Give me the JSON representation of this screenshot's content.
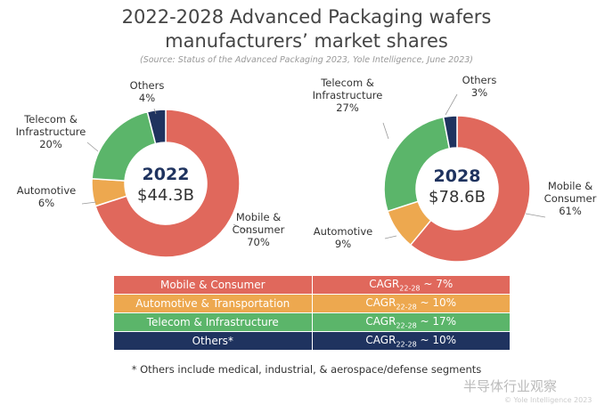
{
  "chart_data": [
    {
      "type": "pie",
      "donut": true,
      "year": "2022",
      "total": "$44.3B",
      "slices": [
        {
          "name": "Mobile & Consumer",
          "value": 70,
          "label": "Mobile &\nConsumer\n70%",
          "color": "#e0685c"
        },
        {
          "name": "Automotive",
          "value": 6,
          "label": "Automotive\n6%",
          "color": "#eda84f"
        },
        {
          "name": "Telecom & Infrastructure",
          "value": 20,
          "label": "Telecom &\nInfrastructure\n20%",
          "color": "#5bb56a"
        },
        {
          "name": "Others",
          "value": 4,
          "label": "Others\n4%",
          "color": "#1f335f"
        }
      ]
    },
    {
      "type": "pie",
      "donut": true,
      "year": "2028",
      "total": "$78.6B",
      "slices": [
        {
          "name": "Mobile & Consumer",
          "value": 61,
          "label": "Mobile &\nConsumer\n61%",
          "color": "#e0685c"
        },
        {
          "name": "Automotive",
          "value": 9,
          "label": "Automotive\n9%",
          "color": "#eda84f"
        },
        {
          "name": "Telecom & Infrastructure",
          "value": 27,
          "label": "Telecom &\nInfrastructure\n27%",
          "color": "#5bb56a"
        },
        {
          "name": "Others",
          "value": 3,
          "label": "Others\n3%",
          "color": "#1f335f"
        }
      ]
    }
  ],
  "title_line1": "2022-2028 Advanced Packaging wafers",
  "title_line2": "manufacturers’ market shares",
  "source": "(Source: Status of the Advanced Packaging 2023, Yole Intelligence, June 2023)",
  "cagr_table": [
    {
      "segment": "Mobile & Consumer",
      "cagr": "~ 7%",
      "color": "#e0685c"
    },
    {
      "segment": "Automotive & Transportation",
      "cagr": "~ 10%",
      "color": "#eda84f"
    },
    {
      "segment": "Telecom & Infrastructure",
      "cagr": "~ 17%",
      "color": "#5bb56a"
    },
    {
      "segment": "Others*",
      "cagr": "~ 10%",
      "color": "#1f335f"
    }
  ],
  "cagr_prefix": "CAGR",
  "cagr_sub": "22-28",
  "footnote": "* Others include medical, industrial, & aerospace/defense segments",
  "watermark": "半导体行业观察",
  "copyright": "© Yole Intelligence 2023"
}
